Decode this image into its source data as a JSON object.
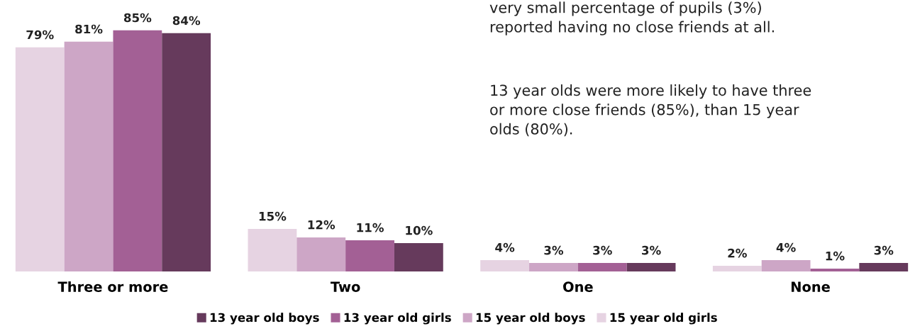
{
  "chart_data": {
    "type": "bar",
    "categories": [
      "Three or more",
      "Two",
      "One",
      "None"
    ],
    "series": [
      {
        "name": "15 year old girls",
        "color": "#e6d3e2",
        "values": [
          79,
          15,
          4,
          2
        ],
        "value_labels": [
          "79%",
          "15%",
          "4%",
          "2%"
        ]
      },
      {
        "name": "15 year old boys",
        "color": "#cda6c6",
        "values": [
          81,
          12,
          3,
          4
        ],
        "value_labels": [
          "81%",
          "12%",
          "3%",
          "4%"
        ]
      },
      {
        "name": "13 year old girls",
        "color": "#a36095",
        "values": [
          85,
          11,
          3,
          1
        ],
        "value_labels": [
          "85%",
          "11%",
          "3%",
          "1%"
        ]
      },
      {
        "name": "13 year old boys",
        "color": "#663a5c",
        "values": [
          84,
          10,
          3,
          3
        ],
        "value_labels": [
          "84%",
          "10%",
          "3%",
          "3%"
        ]
      }
    ],
    "legend": "bottom",
    "grid": false,
    "annotations": [
      "very small percentage of pupils (3%)\nreported having no close friends at all.",
      "13 year olds were more likely to have three\nor more close friends (85%), than 15 year\nolds (80%)."
    ]
  }
}
